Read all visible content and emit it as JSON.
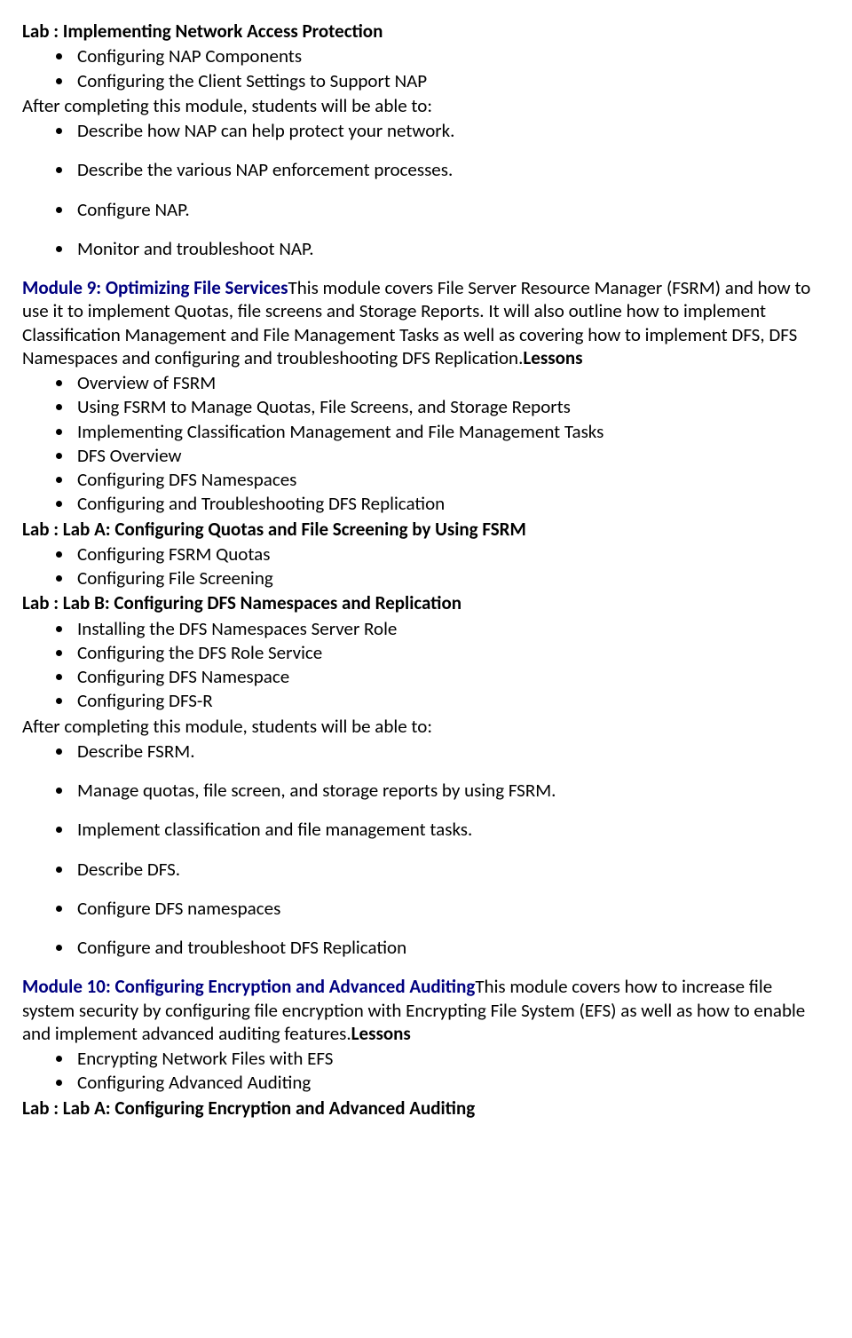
{
  "colors": {
    "text": "#000000",
    "module_title": "#000080",
    "background": "#ffffff"
  },
  "lab8": {
    "title": "Lab : Implementing Network Access Protection",
    "items": [
      "Configuring NAP Components",
      "Configuring the Client Settings to Support NAP"
    ],
    "after_text": "After completing this module, students will be able to:",
    "outcomes": [
      "Describe how NAP can help protect your network.",
      "Describe the various NAP enforcement processes.",
      "Configure NAP.",
      "Monitor and troubleshoot NAP."
    ]
  },
  "module9": {
    "title": "Module 9: Optimizing File Services",
    "description": "This module covers File Server Resource Manager (FSRM) and how to use it to implement Quotas, file screens and Storage Reports. It will also outline how to implement Classification Management and File Management Tasks as well as covering how to implement DFS, DFS Namespaces and configuring and troubleshooting DFS Replication.",
    "lessons_label": "Lessons",
    "lessons": [
      "Overview of FSRM",
      "Using FSRM to Manage Quotas, File Screens, and Storage Reports",
      "Implementing Classification Management and File Management Tasks",
      "DFS Overview",
      "Configuring DFS Namespaces",
      "Configuring and Troubleshooting DFS Replication"
    ],
    "labA_title": "Lab : Lab A: Configuring Quotas and File Screening by Using FSRM",
    "labA_items": [
      "Configuring FSRM Quotas",
      "Configuring File Screening"
    ],
    "labB_title": "Lab : Lab B: Configuring DFS Namespaces and Replication",
    "labB_items": [
      "Installing the DFS Namespaces Server Role",
      "Configuring the DFS Role Service",
      "Configuring DFS Namespace",
      "Configuring DFS-R"
    ],
    "after_text": "After completing this module, students will be able to:",
    "outcomes": [
      "Describe FSRM.",
      "Manage quotas, file screen, and storage reports by using FSRM.",
      "Implement classification and file management tasks.",
      "Describe DFS.",
      "Configure DFS namespaces",
      "Configure and troubleshoot DFS Replication"
    ]
  },
  "module10": {
    "title": "Module 10: Configuring Encryption and Advanced Auditing",
    "description": "This module covers how to increase file system security by configuring file encryption with Encrypting File System (EFS) as well as how to enable and implement advanced auditing features.",
    "lessons_label": "Lessons",
    "lessons": [
      "Encrypting Network Files with EFS",
      "Configuring Advanced Auditing"
    ],
    "labA_title": "Lab : Lab A: Configuring Encryption and Advanced Auditing"
  }
}
